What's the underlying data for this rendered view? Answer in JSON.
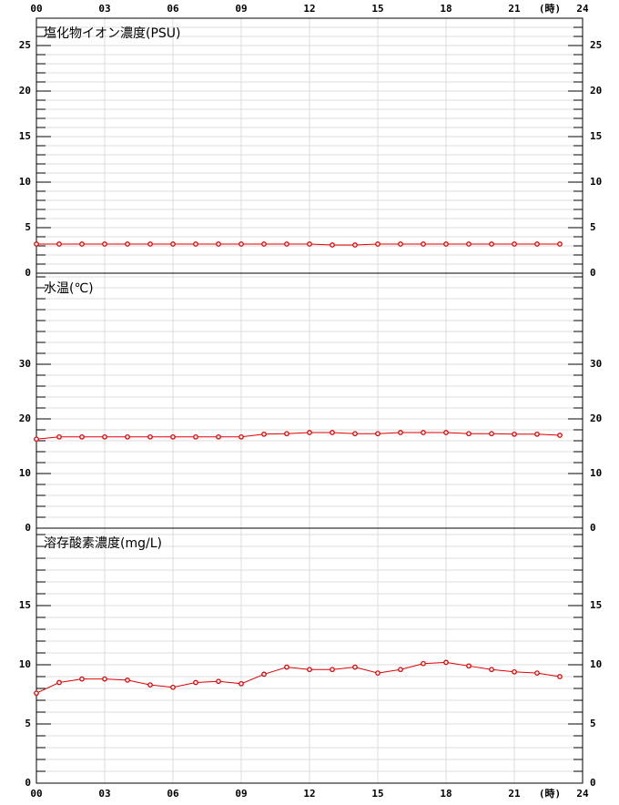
{
  "x_axis": {
    "xlim": [
      0,
      24
    ],
    "unit": "(時)",
    "xticks": [
      {
        "value": 0,
        "label": "00"
      },
      {
        "value": 3,
        "label": "03"
      },
      {
        "value": 6,
        "label": "06"
      },
      {
        "value": 9,
        "label": "09"
      },
      12,
      15,
      18,
      21,
      24
    ]
  },
  "chart_data": [
    {
      "type": "line",
      "title": "塩化物イオン濃度(PSU)",
      "color": "#e00000",
      "x": [
        0,
        1,
        2,
        3,
        4,
        5,
        6,
        7,
        8,
        9,
        10,
        11,
        12,
        13,
        14,
        15,
        16,
        17,
        18,
        19,
        20,
        21,
        22,
        23
      ],
      "values": [
        3.2,
        3.2,
        3.2,
        3.2,
        3.2,
        3.2,
        3.2,
        3.2,
        3.2,
        3.2,
        3.2,
        3.2,
        3.2,
        3.1,
        3.1,
        3.2,
        3.2,
        3.2,
        3.2,
        3.2,
        3.2,
        3.2,
        3.2,
        3.2
      ],
      "ylim": [
        0,
        28
      ],
      "yticks": [
        0,
        5,
        10,
        15,
        20,
        25
      ],
      "yminor": 1,
      "grid": true
    },
    {
      "type": "line",
      "title": "水温(℃)",
      "color": "#e00000",
      "x": [
        0,
        1,
        2,
        3,
        4,
        5,
        6,
        7,
        8,
        9,
        10,
        11,
        12,
        13,
        14,
        15,
        16,
        17,
        18,
        19,
        20,
        21,
        22,
        23
      ],
      "values": [
        16.3,
        16.7,
        16.7,
        16.7,
        16.7,
        16.7,
        16.7,
        16.7,
        16.7,
        16.7,
        17.2,
        17.3,
        17.5,
        17.5,
        17.3,
        17.3,
        17.5,
        17.5,
        17.5,
        17.3,
        17.3,
        17.2,
        17.2,
        17.0
      ],
      "ylim": [
        0,
        46.67
      ],
      "yticks": [
        0,
        10,
        20,
        30
      ],
      "yminor": 2,
      "grid": true
    },
    {
      "type": "line",
      "title": "溶存酸素濃度(mg/L)",
      "color": "#e00000",
      "x": [
        0,
        1,
        2,
        3,
        4,
        5,
        6,
        7,
        8,
        9,
        10,
        11,
        12,
        13,
        14,
        15,
        16,
        17,
        18,
        19,
        20,
        21,
        22,
        23
      ],
      "values": [
        7.6,
        8.5,
        8.8,
        8.8,
        8.7,
        8.3,
        8.1,
        8.5,
        8.6,
        8.4,
        9.2,
        9.8,
        9.6,
        9.6,
        9.8,
        9.3,
        9.6,
        10.1,
        10.2,
        9.9,
        9.6,
        9.4,
        9.3,
        9.0
      ],
      "ylim": [
        0,
        21.54
      ],
      "yticks": [
        0,
        5,
        10,
        15
      ],
      "yminor": 1,
      "grid": true
    }
  ]
}
